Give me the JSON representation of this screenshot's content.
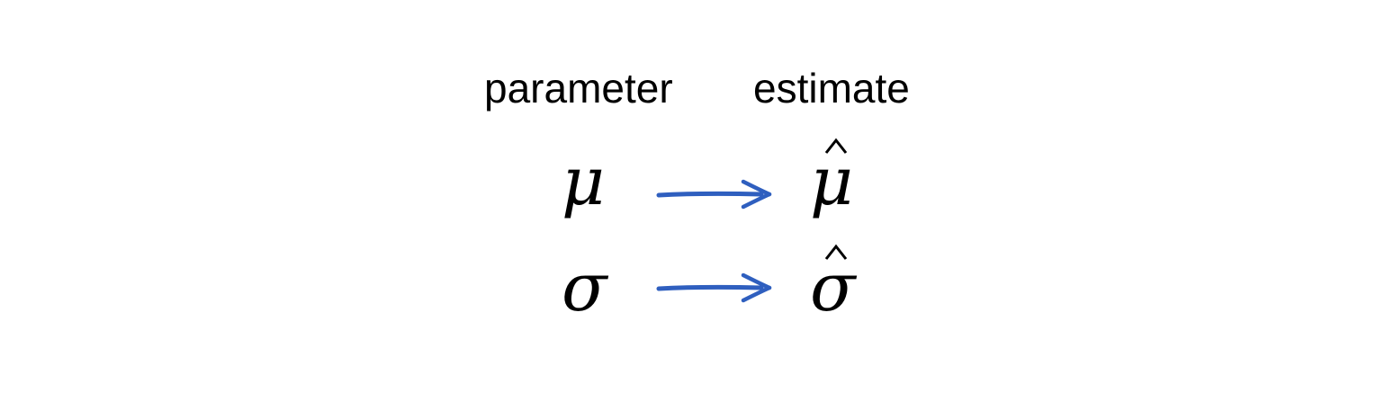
{
  "headers": {
    "parameter": "parameter",
    "estimate": "estimate"
  },
  "rows": [
    {
      "parameter": "μ",
      "estimate": "μ"
    },
    {
      "parameter": "σ",
      "estimate": "σ"
    }
  ],
  "colors": {
    "arrow": "#2f5fbf",
    "text": "#000000"
  },
  "icons": {
    "arrow": "right-arrow-icon",
    "hat": "hat-accent-icon"
  }
}
